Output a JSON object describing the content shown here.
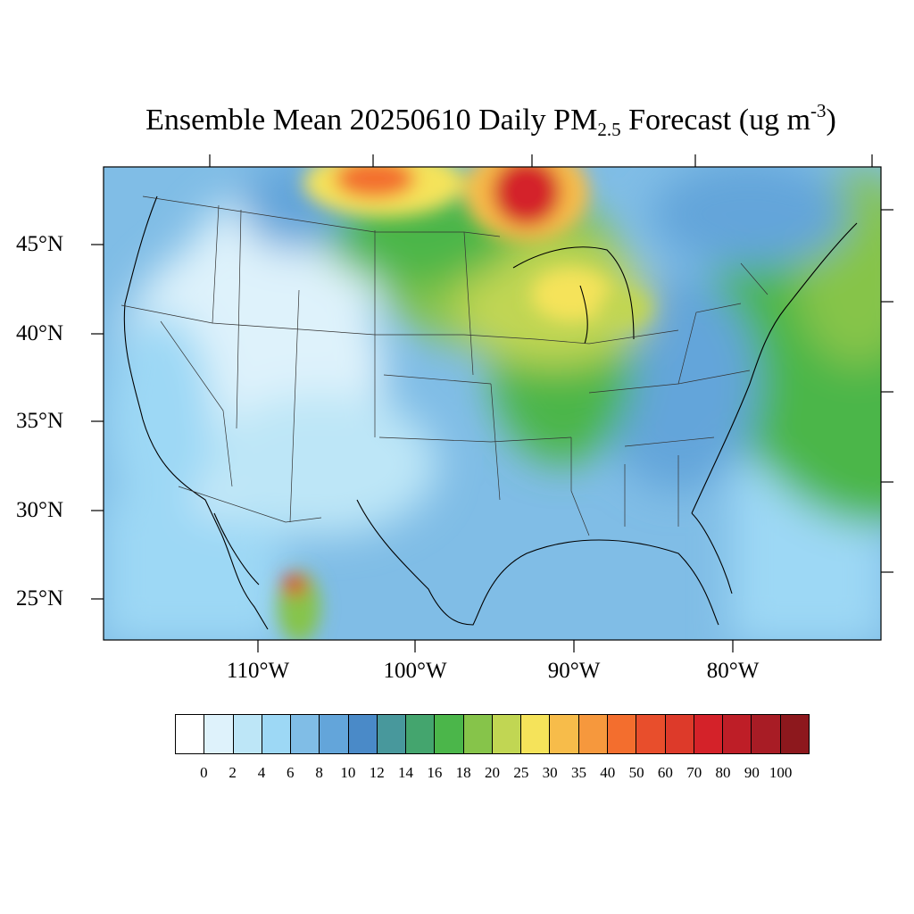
{
  "title": {
    "prefix": "Ensemble Mean 20250610 Daily PM",
    "sub": "2.5",
    "mid": " Forecast (ug m",
    "sup": "-3",
    "end": ")"
  },
  "lat_labels": [
    "45°N",
    "40°N",
    "35°N",
    "30°N",
    "25°N"
  ],
  "lon_labels": [
    "110°W",
    "100°W",
    "90°W",
    "80°W"
  ],
  "colorbar": {
    "labels": [
      "0",
      "2",
      "4",
      "6",
      "8",
      "10",
      "12",
      "14",
      "16",
      "18",
      "20",
      "25",
      "30",
      "35",
      "40",
      "50",
      "60",
      "70",
      "80",
      "90",
      "100"
    ],
    "colors": [
      "#ffffff",
      "#def2fb",
      "#bde6f7",
      "#9dd8f5",
      "#80bde6",
      "#63a5da",
      "#4a8ac8",
      "#48989c",
      "#44a56e",
      "#4bb64a",
      "#86c44a",
      "#c1d653",
      "#f5e35a",
      "#f7bc4a",
      "#f6983d",
      "#f36e2e",
      "#e84e2c",
      "#dd3a2a",
      "#d42229",
      "#be1e27",
      "#a81c25",
      "#8d181d"
    ]
  }
}
